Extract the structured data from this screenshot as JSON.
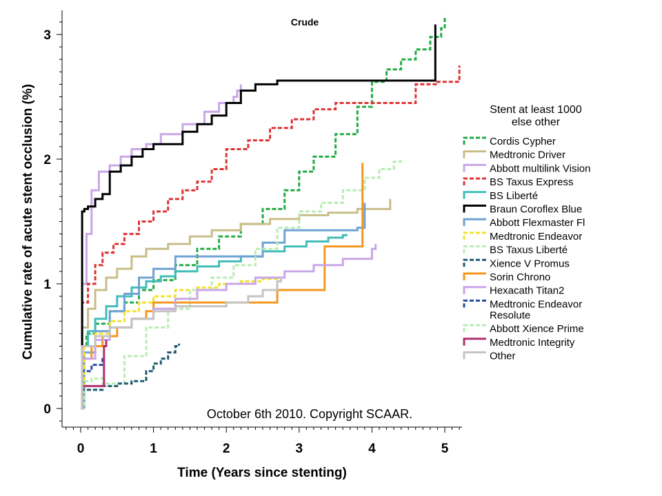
{
  "chart_data": {
    "type": "line",
    "title": "Crude",
    "xlabel": "Time (Years since stenting)",
    "ylabel": "Cumulative rate of acute stent occlusion (%)",
    "xlim": [
      -0.25,
      5.3
    ],
    "ylim": [
      -0.15,
      3.2
    ],
    "xticks": [
      0,
      1,
      2,
      3,
      4,
      5
    ],
    "xtick_labels": [
      "0",
      "1",
      "2",
      "3",
      "4",
      "5"
    ],
    "yticks": [
      0,
      1,
      2,
      3
    ],
    "ytick_labels": [
      "0",
      "1",
      "2",
      "3"
    ],
    "legend_title": "Stent at least 1000 else other",
    "legend_title_lines": [
      "Stent at least 1000",
      "else other"
    ],
    "legend_position": "right",
    "annotation": "October 6th 2010. Copyright SCAAR.",
    "series": [
      {
        "name": "Cordis Cypher",
        "color": "#22aa44",
        "dash": "6,3",
        "x": [
          0,
          0.02,
          0.08,
          0.2,
          0.4,
          0.6,
          0.8,
          1.0,
          1.3,
          1.6,
          1.9,
          2.2,
          2.5,
          2.8,
          3.0,
          3.2,
          3.5,
          3.8,
          4.0,
          4.2,
          4.4,
          4.6,
          4.8,
          4.95,
          5.0
        ],
        "y": [
          0,
          0.5,
          0.6,
          0.68,
          0.78,
          0.85,
          0.95,
          1.03,
          1.15,
          1.28,
          1.38,
          1.48,
          1.6,
          1.75,
          1.9,
          2.02,
          2.2,
          2.42,
          2.62,
          2.72,
          2.8,
          2.88,
          2.98,
          3.05,
          3.15
        ]
      },
      {
        "name": "Medtronic Driver",
        "color": "#c8bd88",
        "dash": "",
        "x": [
          0,
          0.02,
          0.1,
          0.2,
          0.35,
          0.5,
          0.7,
          0.9,
          1.2,
          1.5,
          1.8,
          2.2,
          2.6,
          3.0,
          3.4,
          3.8,
          4.0,
          4.2,
          4.25
        ],
        "y": [
          0,
          0.65,
          0.8,
          0.95,
          1.05,
          1.12,
          1.22,
          1.28,
          1.32,
          1.38,
          1.43,
          1.48,
          1.52,
          1.55,
          1.57,
          1.6,
          1.6,
          1.6,
          1.68
        ]
      },
      {
        "name": "Abbott multilink Vision",
        "color": "#c9a6e8",
        "dash": "",
        "x": [
          0,
          0.02,
          0.08,
          0.15,
          0.25,
          0.4,
          0.55,
          0.7,
          0.9,
          1.1,
          1.4,
          1.7,
          1.9,
          2.1,
          2.15,
          2.2
        ],
        "y": [
          0,
          1.0,
          1.4,
          1.75,
          1.9,
          1.95,
          2.02,
          2.08,
          2.12,
          2.2,
          2.28,
          2.38,
          2.45,
          2.5,
          2.55,
          2.6
        ]
      },
      {
        "name": "BS Taxus Express",
        "color": "#dd3333",
        "dash": "6,3",
        "x": [
          0,
          0.02,
          0.1,
          0.2,
          0.3,
          0.45,
          0.6,
          0.8,
          1.0,
          1.2,
          1.4,
          1.6,
          1.8,
          2.0,
          2.3,
          2.6,
          2.9,
          3.2,
          3.5,
          3.8,
          4.0,
          4.3,
          4.6,
          4.9,
          5.15,
          5.2
        ],
        "y": [
          0,
          0.85,
          1.0,
          1.15,
          1.25,
          1.32,
          1.4,
          1.5,
          1.58,
          1.68,
          1.75,
          1.82,
          1.92,
          2.08,
          2.15,
          2.25,
          2.32,
          2.4,
          2.45,
          2.45,
          2.45,
          2.45,
          2.6,
          2.62,
          2.62,
          2.75
        ]
      },
      {
        "name": "BS Liberté",
        "color": "#40bdb8",
        "dash": "",
        "x": [
          0,
          0.02,
          0.1,
          0.2,
          0.35,
          0.5,
          0.7,
          0.9,
          1.1,
          1.3,
          1.6,
          1.9,
          2.2,
          2.5,
          2.8,
          3.1,
          3.4,
          3.6,
          3.65
        ],
        "y": [
          0,
          0.5,
          0.62,
          0.72,
          0.82,
          0.9,
          0.97,
          1.02,
          1.06,
          1.1,
          1.14,
          1.18,
          1.22,
          1.26,
          1.3,
          1.34,
          1.37,
          1.39,
          1.4
        ]
      },
      {
        "name": "Braun Coroflex Blue",
        "color": "#000000",
        "dash": "",
        "x": [
          0,
          0.02,
          0.05,
          0.1,
          0.2,
          0.3,
          0.4,
          0.55,
          0.7,
          0.85,
          1.0,
          1.2,
          1.4,
          1.6,
          1.8,
          2.0,
          2.2,
          2.4,
          2.7,
          3.0,
          3.5,
          4.0,
          4.5,
          4.8,
          4.85,
          4.87
        ],
        "y": [
          0,
          1.58,
          1.6,
          1.62,
          1.68,
          1.72,
          1.9,
          1.95,
          2.02,
          2.08,
          2.12,
          2.12,
          2.22,
          2.28,
          2.35,
          2.45,
          2.55,
          2.6,
          2.63,
          2.63,
          2.63,
          2.63,
          2.63,
          2.63,
          2.63,
          3.08
        ]
      },
      {
        "name": "Abbott Flexmaster Fl",
        "color": "#6ea2d4",
        "dash": "",
        "x": [
          0,
          0.05,
          0.2,
          0.4,
          0.6,
          0.8,
          1.0,
          1.3,
          1.6,
          2.0,
          2.5,
          2.8,
          3.0,
          3.5,
          3.8,
          3.9
        ],
        "y": [
          0,
          0.45,
          0.62,
          0.78,
          0.92,
          1.05,
          1.12,
          1.22,
          1.22,
          1.22,
          1.33,
          1.43,
          1.43,
          1.43,
          1.45,
          1.65
        ]
      },
      {
        "name": "Medtronic Endeavor",
        "color": "#f2e229",
        "dash": "6,3",
        "x": [
          0,
          0.05,
          0.2,
          0.4,
          0.6,
          0.8,
          1.0,
          1.3,
          1.6,
          1.9,
          2.2,
          2.5,
          2.7
        ],
        "y": [
          0,
          0.5,
          0.6,
          0.7,
          0.78,
          0.85,
          0.9,
          0.95,
          0.97,
          1.0,
          1.02,
          1.04,
          1.06
        ]
      },
      {
        "name": "BS Taxus Liberté",
        "color": "#b9ecb4",
        "dash": "6,3",
        "x": [
          0,
          0.05,
          0.3,
          0.6,
          0.9,
          1.2,
          1.5,
          1.8,
          2.1,
          2.4,
          2.7,
          3.0,
          3.3,
          3.6,
          3.9,
          4.1,
          4.3,
          4.4
        ],
        "y": [
          0,
          0.15,
          0.2,
          0.42,
          0.65,
          0.8,
          0.95,
          1.05,
          1.15,
          1.28,
          1.45,
          1.58,
          1.65,
          1.75,
          1.85,
          1.92,
          1.98,
          2.0
        ]
      },
      {
        "name": "Xience V Promus",
        "color": "#1c5a6e",
        "dash": "6,3",
        "x": [
          0,
          0.02,
          0.3,
          0.5,
          0.7,
          0.9,
          1.0,
          1.1,
          1.2,
          1.3,
          1.35
        ],
        "y": [
          0,
          0.15,
          0.18,
          0.2,
          0.22,
          0.3,
          0.36,
          0.4,
          0.45,
          0.5,
          0.52
        ]
      },
      {
        "name": "Sorin Chrono",
        "color": "#f5961e",
        "dash": "",
        "x": [
          0,
          0.02,
          0.15,
          0.3,
          0.5,
          0.7,
          0.9,
          1.0,
          1.3,
          1.6,
          2.0,
          2.4,
          2.7,
          3.0,
          3.2,
          3.35,
          3.6,
          3.85,
          3.87
        ],
        "y": [
          0,
          0.4,
          0.5,
          0.58,
          0.65,
          0.72,
          0.78,
          0.85,
          0.85,
          0.85,
          0.85,
          0.85,
          0.95,
          0.95,
          0.95,
          1.3,
          1.3,
          1.3,
          1.97
        ]
      },
      {
        "name": "Hexacath Titan2",
        "color": "#c9a6e8",
        "dash": "",
        "x": [
          0,
          0.02,
          0.2,
          0.4,
          0.7,
          1.0,
          1.3,
          1.6,
          2.0,
          2.4,
          2.8,
          3.2,
          3.6,
          4.0,
          4.05
        ],
        "y": [
          0,
          0.4,
          0.55,
          0.65,
          0.72,
          0.8,
          0.88,
          0.95,
          1.0,
          1.05,
          1.1,
          1.15,
          1.2,
          1.28,
          1.32
        ]
      },
      {
        "name": "Medtronic Endeavor Resolute",
        "color": "#2c4a9e",
        "dash": "6,3",
        "legend_lines": [
          "Medtronic Endeavor",
          "Resolute"
        ],
        "x": [
          0,
          0.02,
          0.15,
          0.3
        ],
        "y": [
          0,
          0.3,
          0.35,
          0.42
        ]
      },
      {
        "name": "Abbott Xience Prime",
        "color": "#b9ecb4",
        "dash": "6,3",
        "x": [
          0,
          0.02,
          0.15,
          0.3
        ],
        "y": [
          0,
          0.22,
          0.24,
          0.26
        ]
      },
      {
        "name": "Medtronic Integrity",
        "color": "#b03070",
        "dash": "",
        "x": [
          0,
          0.02,
          0.1,
          0.3,
          0.32,
          0.35
        ],
        "y": [
          0,
          0.18,
          0.18,
          0.18,
          0.5,
          0.55
        ]
      },
      {
        "name": "Other",
        "color": "#c4c4c4",
        "dash": "",
        "x": [
          0,
          0.02,
          0.2,
          0.4,
          0.7,
          1.0,
          1.3,
          1.6,
          2.0,
          2.3,
          2.5,
          2.7,
          2.75
        ],
        "y": [
          0,
          0.5,
          0.58,
          0.65,
          0.72,
          0.78,
          0.82,
          0.82,
          0.85,
          0.9,
          0.95,
          1.02,
          1.06
        ]
      }
    ]
  }
}
